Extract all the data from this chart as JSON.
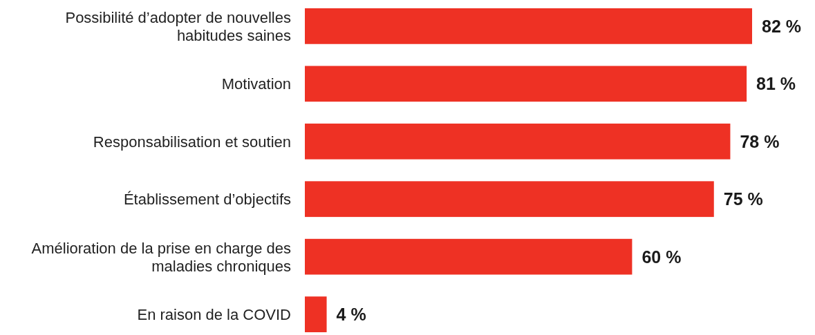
{
  "chart_data": {
    "type": "bar",
    "orientation": "horizontal",
    "categories": [
      "Possibilité d’adopter de nouvelles habitudes saines",
      "Motivation",
      "Responsabilisation et soutien",
      "Établissement d’objectifs",
      "Amélioration de la prise en charge des maladies chroniques",
      "En raison de la COVID"
    ],
    "values": [
      82,
      81,
      78,
      75,
      60,
      4
    ],
    "value_labels": [
      "82 %",
      "81 %",
      "78 %",
      "75 %",
      "60 %",
      "4 %"
    ],
    "color": "#ee3124"
  }
}
